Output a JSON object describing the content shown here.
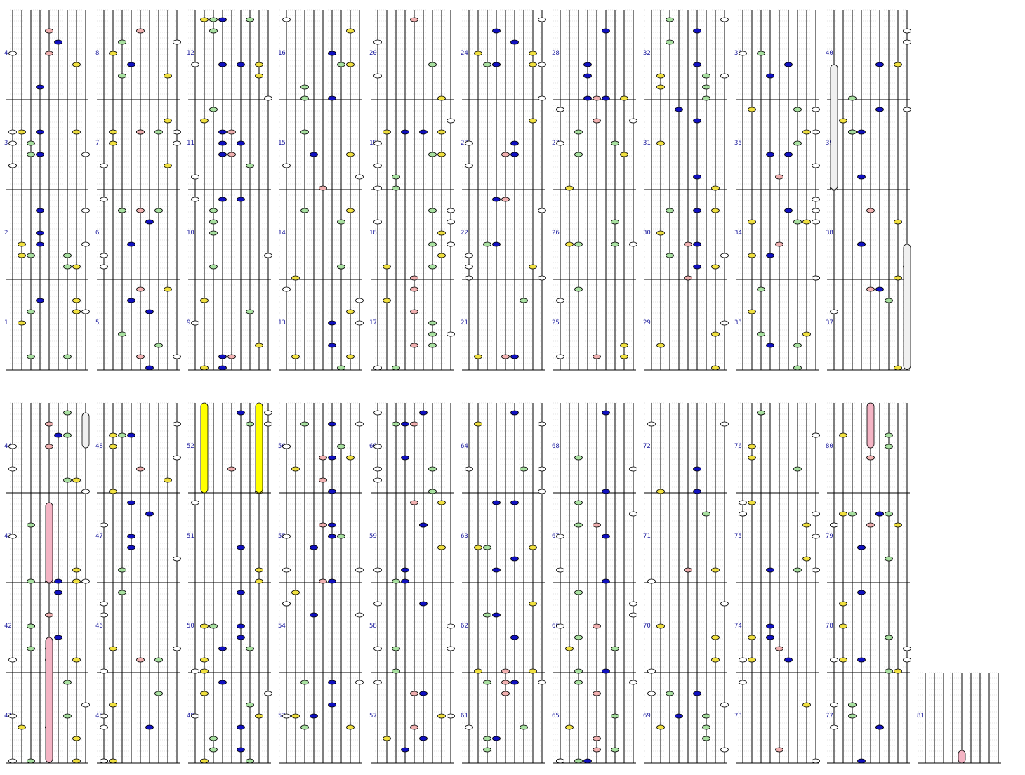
{
  "title": "",
  "palette": {
    "white": "#ffffff",
    "yellow": "#f0e040",
    "blue": "#1010c0",
    "green": "#a8e0a0",
    "pink": "#f0b0b0",
    "hold_yellow": "#ffff00",
    "hold_pink": "#f4b4c4",
    "hold_white": "#f0f0f0"
  },
  "measures": [
    {
      "n": 1,
      "notes": []
    },
    {
      "n": 2,
      "notes": []
    },
    {
      "n": 3,
      "notes": []
    },
    {
      "n": 4,
      "notes": []
    },
    {
      "n": 5,
      "notes": []
    },
    {
      "n": 6,
      "notes": []
    },
    {
      "n": 7,
      "notes": []
    },
    {
      "n": 8,
      "notes": []
    },
    {
      "n": 9,
      "notes": []
    },
    {
      "n": 10,
      "notes": []
    },
    {
      "n": 11,
      "notes": []
    },
    {
      "n": 12,
      "notes": []
    },
    {
      "n": 13,
      "notes": []
    },
    {
      "n": 14,
      "notes": []
    },
    {
      "n": 15,
      "notes": []
    },
    {
      "n": 16,
      "notes": []
    },
    {
      "n": 17,
      "notes": []
    },
    {
      "n": 18,
      "notes": []
    },
    {
      "n": 19,
      "notes": []
    },
    {
      "n": 20,
      "notes": []
    },
    {
      "n": 21,
      "notes": []
    },
    {
      "n": 22,
      "notes": []
    },
    {
      "n": 23,
      "notes": []
    },
    {
      "n": 24,
      "notes": []
    },
    {
      "n": 25,
      "notes": []
    },
    {
      "n": 26,
      "notes": []
    },
    {
      "n": 27,
      "notes": []
    },
    {
      "n": 28,
      "notes": []
    },
    {
      "n": 29,
      "notes": []
    },
    {
      "n": 30,
      "notes": []
    },
    {
      "n": 31,
      "notes": []
    },
    {
      "n": 32,
      "notes": []
    },
    {
      "n": 33,
      "notes": []
    },
    {
      "n": 34,
      "notes": []
    },
    {
      "n": 35,
      "notes": []
    },
    {
      "n": 36,
      "notes": []
    },
    {
      "n": 37,
      "notes": []
    },
    {
      "n": 38,
      "notes": []
    },
    {
      "n": 39,
      "notes": []
    },
    {
      "n": 40,
      "notes": []
    },
    {
      "n": 41,
      "notes": []
    },
    {
      "n": 42,
      "notes": []
    },
    {
      "n": 43,
      "notes": []
    },
    {
      "n": 44,
      "notes": []
    },
    {
      "n": 45,
      "notes": []
    },
    {
      "n": 46,
      "notes": []
    },
    {
      "n": 47,
      "notes": []
    },
    {
      "n": 48,
      "notes": []
    },
    {
      "n": 49,
      "notes": []
    },
    {
      "n": 50,
      "notes": []
    },
    {
      "n": 51,
      "notes": []
    },
    {
      "n": 52,
      "notes": []
    },
    {
      "n": 53,
      "notes": []
    },
    {
      "n": 54,
      "notes": []
    },
    {
      "n": 55,
      "notes": []
    },
    {
      "n": 56,
      "notes": []
    },
    {
      "n": 57,
      "notes": []
    },
    {
      "n": 58,
      "notes": []
    },
    {
      "n": 59,
      "notes": []
    },
    {
      "n": 60,
      "notes": []
    },
    {
      "n": 61,
      "notes": []
    },
    {
      "n": 62,
      "notes": []
    },
    {
      "n": 63,
      "notes": []
    },
    {
      "n": 64,
      "notes": []
    },
    {
      "n": 65,
      "notes": []
    },
    {
      "n": 66,
      "notes": []
    },
    {
      "n": 67,
      "notes": []
    },
    {
      "n": 68,
      "notes": []
    },
    {
      "n": 69,
      "notes": []
    },
    {
      "n": 70,
      "notes": []
    },
    {
      "n": 71,
      "notes": []
    },
    {
      "n": 72,
      "notes": []
    },
    {
      "n": 73,
      "notes": []
    },
    {
      "n": 74,
      "notes": []
    },
    {
      "n": 75,
      "notes": []
    },
    {
      "n": 76,
      "notes": []
    },
    {
      "n": 77,
      "notes": []
    },
    {
      "n": 78,
      "notes": []
    },
    {
      "n": 79,
      "notes": []
    },
    {
      "n": 80,
      "notes": []
    },
    {
      "n": 81,
      "notes": []
    }
  ],
  "chart_data": {
    "type": "table",
    "lanes": [
      "white",
      "yellow",
      "green",
      "blue",
      "pink",
      "blue",
      "green",
      "yellow",
      "white"
    ],
    "measures_per_column": 4,
    "total_measures": 81
  }
}
